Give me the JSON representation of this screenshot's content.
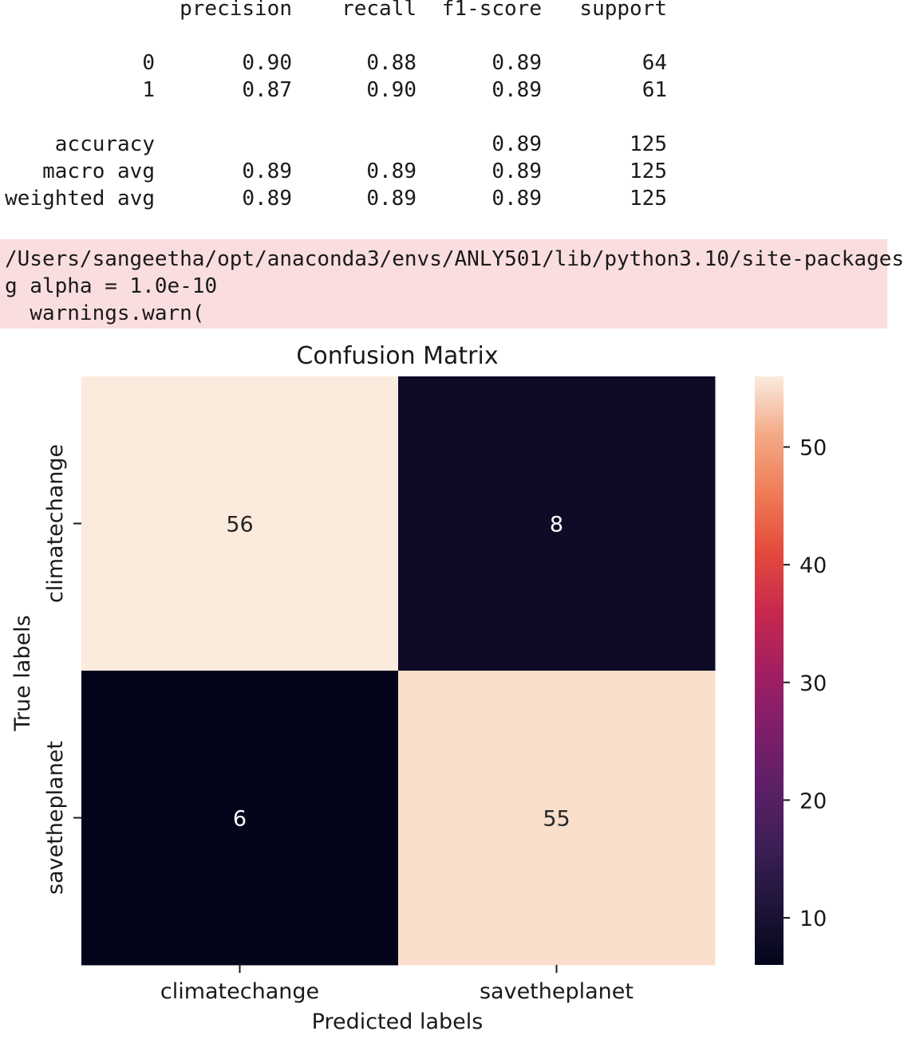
{
  "report": {
    "columns": [
      "precision",
      "recall",
      "f1-score",
      "support"
    ],
    "rows": [
      {
        "label": "0",
        "precision": "0.90",
        "recall": "0.88",
        "f1": "0.89",
        "support": "64"
      },
      {
        "label": "1",
        "precision": "0.87",
        "recall": "0.90",
        "f1": "0.89",
        "support": "61"
      },
      {
        "label": "accuracy",
        "precision": "",
        "recall": "",
        "f1": "0.89",
        "support": "125"
      },
      {
        "label": "macro avg",
        "precision": "0.89",
        "recall": "0.89",
        "f1": "0.89",
        "support": "125"
      },
      {
        "label": "weighted avg",
        "precision": "0.89",
        "recall": "0.89",
        "f1": "0.89",
        "support": "125"
      }
    ]
  },
  "warning": {
    "lines": [
      "/Users/sangeetha/opt/anaconda3/envs/ANLY501/lib/python3.10/site-packages",
      "g alpha = 1.0e-10",
      "  warnings.warn("
    ],
    "background": "#f9dddf"
  },
  "chart_data": {
    "type": "heatmap",
    "title": "Confusion Matrix",
    "xlabel": "Predicted labels",
    "ylabel": "True labels",
    "x_categories": [
      "climatechange",
      "savetheplanet"
    ],
    "y_categories": [
      "climatechange",
      "savetheplanet"
    ],
    "values": [
      [
        56,
        8
      ],
      [
        6,
        55
      ]
    ],
    "colorbar": {
      "min": 6,
      "max": 56,
      "ticks": [
        10,
        20,
        30,
        40,
        50
      ]
    },
    "colormap": "rocket",
    "annotation_colors": {
      "light": "#ffffff",
      "dark": "#262626"
    }
  }
}
